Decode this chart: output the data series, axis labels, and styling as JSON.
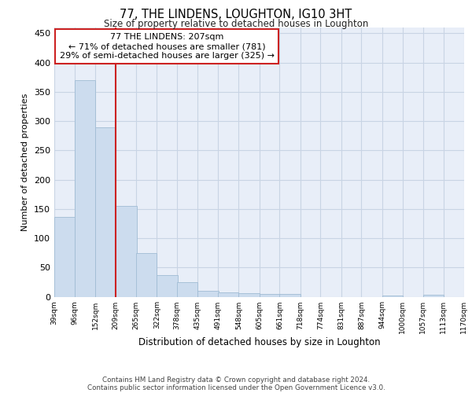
{
  "title": "77, THE LINDENS, LOUGHTON, IG10 3HT",
  "subtitle": "Size of property relative to detached houses in Loughton",
  "xlabel": "Distribution of detached houses by size in Loughton",
  "ylabel": "Number of detached properties",
  "bar_color": "#ccdcee",
  "bar_edge_color": "#a0bcd4",
  "vline_color": "#cc2222",
  "annotation_text": "77 THE LINDENS: 207sqm\n← 71% of detached houses are smaller (781)\n29% of semi-detached houses are larger (325) →",
  "bins": [
    39,
    96,
    152,
    209,
    265,
    322,
    378,
    435,
    491,
    548,
    605,
    661,
    718,
    774,
    831,
    887,
    944,
    1000,
    1057,
    1113,
    1170
  ],
  "counts": [
    136,
    370,
    289,
    155,
    74,
    37,
    25,
    10,
    8,
    6,
    5,
    5,
    0,
    0,
    0,
    0,
    2,
    0,
    3,
    0
  ],
  "ylim": [
    0,
    460
  ],
  "yticks": [
    0,
    50,
    100,
    150,
    200,
    250,
    300,
    350,
    400,
    450
  ],
  "grid_color": "#c8d4e4",
  "bg_color": "#e8eef8",
  "footer": "Contains HM Land Registry data © Crown copyright and database right 2024.\nContains public sector information licensed under the Open Government Licence v3.0.",
  "tick_labels": [
    "39sqm",
    "96sqm",
    "152sqm",
    "209sqm",
    "265sqm",
    "322sqm",
    "378sqm",
    "435sqm",
    "491sqm",
    "548sqm",
    "605sqm",
    "661sqm",
    "718sqm",
    "774sqm",
    "831sqm",
    "887sqm",
    "944sqm",
    "1000sqm",
    "1057sqm",
    "1113sqm",
    "1170sqm"
  ]
}
